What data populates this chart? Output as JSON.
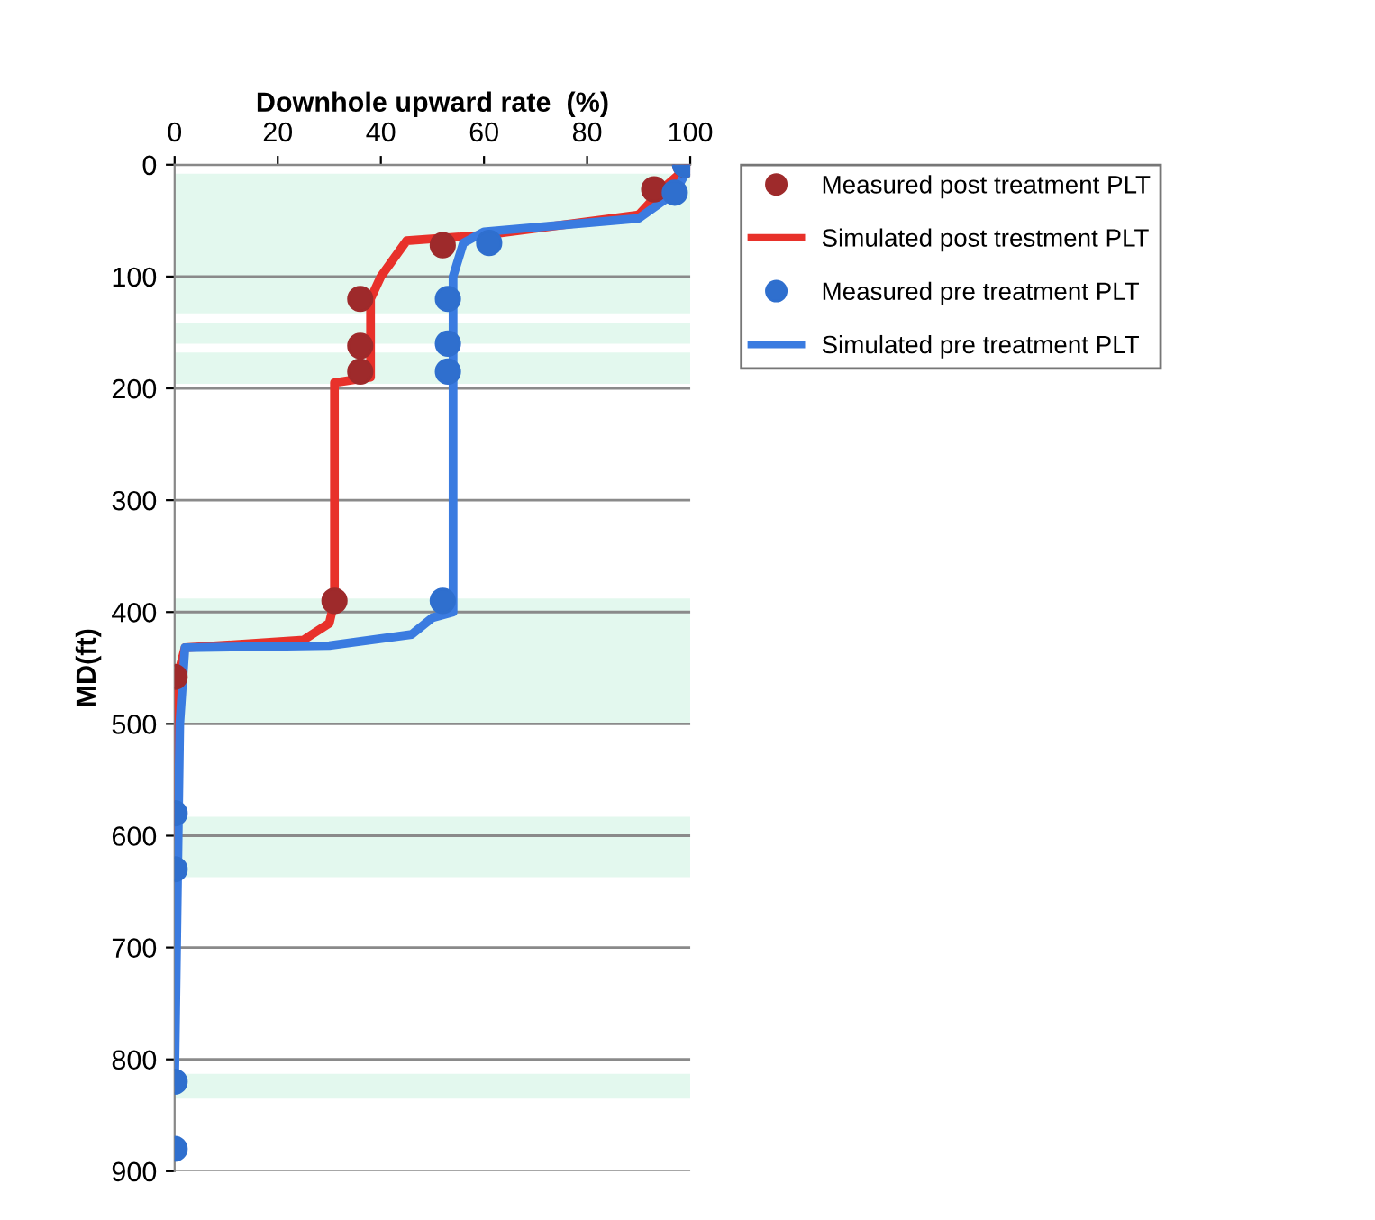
{
  "chart_data": {
    "type": "line",
    "xlabel": "Downhole upward rate  (%)",
    "ylabel": "MD(ft)",
    "xlim": [
      0,
      100
    ],
    "xticks": [
      0,
      20,
      40,
      60,
      80,
      100
    ],
    "ylim": [
      900,
      0
    ],
    "yticks": [
      0,
      100,
      200,
      300,
      400,
      500,
      600,
      700,
      800,
      900
    ],
    "grid": "y",
    "legend": "top right",
    "bands": [
      {
        "axis": "y",
        "from": 8,
        "to": 133,
        "color": "#e3f8ee"
      },
      {
        "axis": "y",
        "from": 142,
        "to": 160,
        "color": "#e3f8ee"
      },
      {
        "axis": "y",
        "from": 168,
        "to": 196,
        "color": "#e3f8ee"
      },
      {
        "axis": "y",
        "from": 388,
        "to": 500,
        "color": "#e3f8ee"
      },
      {
        "axis": "y",
        "from": 583,
        "to": 637,
        "color": "#e3f8ee"
      },
      {
        "axis": "y",
        "from": 813,
        "to": 835,
        "color": "#e3f8ee"
      }
    ],
    "series": [
      {
        "name": "Measured post treatment PLT",
        "type": "scatter",
        "marker": "circle",
        "color": "#9e2a2b",
        "x": [
          99,
          93,
          52,
          36,
          36,
          36,
          31,
          0
        ],
        "values": [
          0,
          22,
          72,
          120,
          162,
          185,
          390,
          458
        ]
      },
      {
        "name": "Simulated post trestment PLT",
        "color": "#e8312a",
        "x": [
          100,
          95,
          90,
          60,
          45,
          40,
          38,
          38,
          31,
          31,
          30,
          25,
          2,
          1,
          0,
          0
        ],
        "values": [
          0,
          20,
          45,
          63,
          68,
          100,
          120,
          190,
          195,
          390,
          410,
          425,
          432,
          450,
          460,
          600
        ]
      },
      {
        "name": "Measured pre treatment PLT",
        "type": "scatter",
        "marker": "circle",
        "color": "#2f6fce",
        "x": [
          99,
          97,
          61,
          53,
          53,
          53,
          52,
          0,
          0,
          0,
          0
        ],
        "values": [
          0,
          25,
          70,
          120,
          160,
          185,
          390,
          580,
          630,
          820,
          880
        ]
      },
      {
        "name": "Simulated pre treatment PLT",
        "color": "#3a7be0",
        "x": [
          100,
          97,
          90,
          60,
          56,
          54,
          54,
          50,
          46,
          30,
          2,
          1,
          0
        ],
        "values": [
          0,
          25,
          48,
          60,
          70,
          100,
          400,
          405,
          420,
          430,
          432,
          500,
          820
        ]
      }
    ]
  }
}
